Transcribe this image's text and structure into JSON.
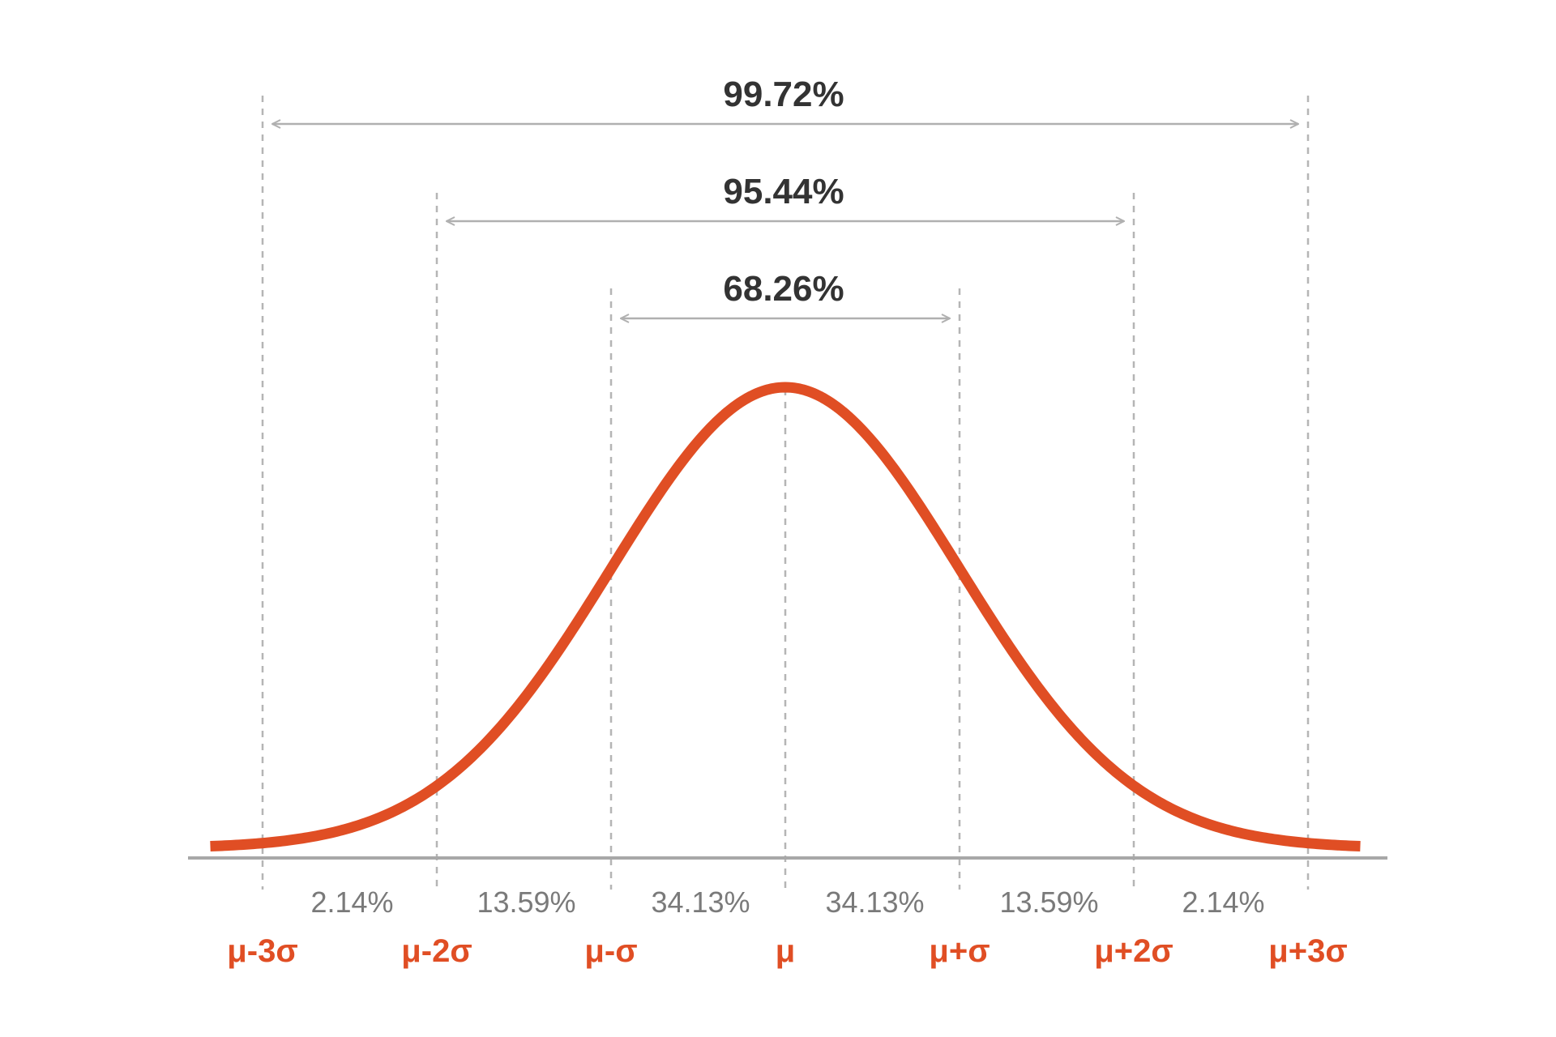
{
  "chart_data": {
    "type": "line",
    "title": "",
    "xlabel": "",
    "ylabel": "",
    "xlim": [
      -3.3,
      3.3
    ],
    "ylim": [
      0,
      0.4
    ],
    "grid": false,
    "legend": "none",
    "series": [
      {
        "distribution": "standard normal density",
        "mean": 0,
        "sd": 1
      }
    ],
    "sigma_ticks": [
      {
        "x": -3,
        "label": "μ-3σ"
      },
      {
        "x": -2,
        "label": "μ-2σ"
      },
      {
        "x": -1,
        "label": "μ-σ"
      },
      {
        "x": 0,
        "label": "μ"
      },
      {
        "x": 1,
        "label": "μ+σ"
      },
      {
        "x": 2,
        "label": "μ+2σ"
      },
      {
        "x": 3,
        "label": "μ+3σ"
      }
    ],
    "segments": [
      {
        "from": -3,
        "to": -2,
        "label": "2.14%"
      },
      {
        "from": -2,
        "to": -1,
        "label": "13.59%"
      },
      {
        "from": -1,
        "to": 0,
        "label": "34.13%"
      },
      {
        "from": 0,
        "to": 1,
        "label": "34.13%"
      },
      {
        "from": 1,
        "to": 2,
        "label": "13.59%"
      },
      {
        "from": 2,
        "to": 3,
        "label": "2.14%"
      }
    ],
    "ranges": [
      {
        "from": -3,
        "to": 3,
        "label": "99.72%"
      },
      {
        "from": -2,
        "to": 2,
        "label": "95.44%"
      },
      {
        "from": -1,
        "to": 1,
        "label": "68.26%"
      }
    ]
  },
  "colors": {
    "curve": "#e04e24",
    "sigma_label": "#e04e24",
    "coverage_label": "#333333",
    "segment_label": "#7a7a7a",
    "guide_line": "#b5b5b5",
    "arrow": "#b0b0b0",
    "baseline": "#a8a8a8"
  }
}
